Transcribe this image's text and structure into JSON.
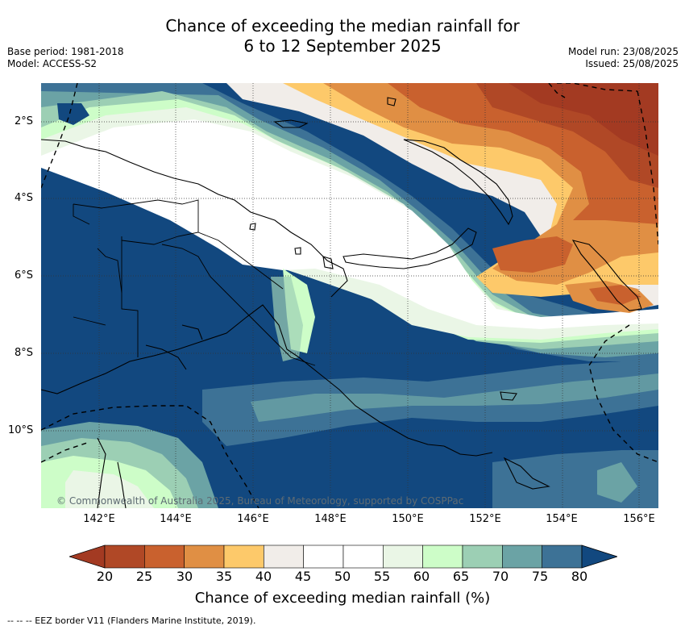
{
  "title_line1": "Chance of exceeding the median rainfall for",
  "title_line2": "6 to 12 September 2025",
  "base_period": "Base period: 1981-2018",
  "model": "Model: ACCESS-S2",
  "model_run": "Model run: 23/08/2025",
  "issued": "Issued: 25/08/2025",
  "copyright": "© Commonwealth of Australia 2025, Bureau of Meteorology, supported by COSPPac",
  "lat_labels": [
    "2°S",
    "4°S",
    "6°S",
    "8°S",
    "10°S"
  ],
  "lon_labels": [
    "142°E",
    "144°E",
    "146°E",
    "148°E",
    "150°E",
    "152°E",
    "154°E",
    "156°E"
  ],
  "colorbar": {
    "ticks": [
      "20",
      "25",
      "30",
      "35",
      "40",
      "45",
      "50",
      "55",
      "60",
      "65",
      "70",
      "75",
      "80"
    ],
    "colors": [
      "#a33a22",
      "#b04826",
      "#c9612e",
      "#e08f44",
      "#fdc96a",
      "#f1ede9",
      "#ffffff",
      "#ffffff",
      "#eaf6e6",
      "#cdfdc8",
      "#9ccfb4",
      "#6ba3a5",
      "#3d7296",
      "#12487f"
    ],
    "label": "Chance of exceeding median rainfall (%)"
  },
  "eez_note": "-- --  -- EEZ border V11 (Flanders Marine Institute, 2019)."
}
